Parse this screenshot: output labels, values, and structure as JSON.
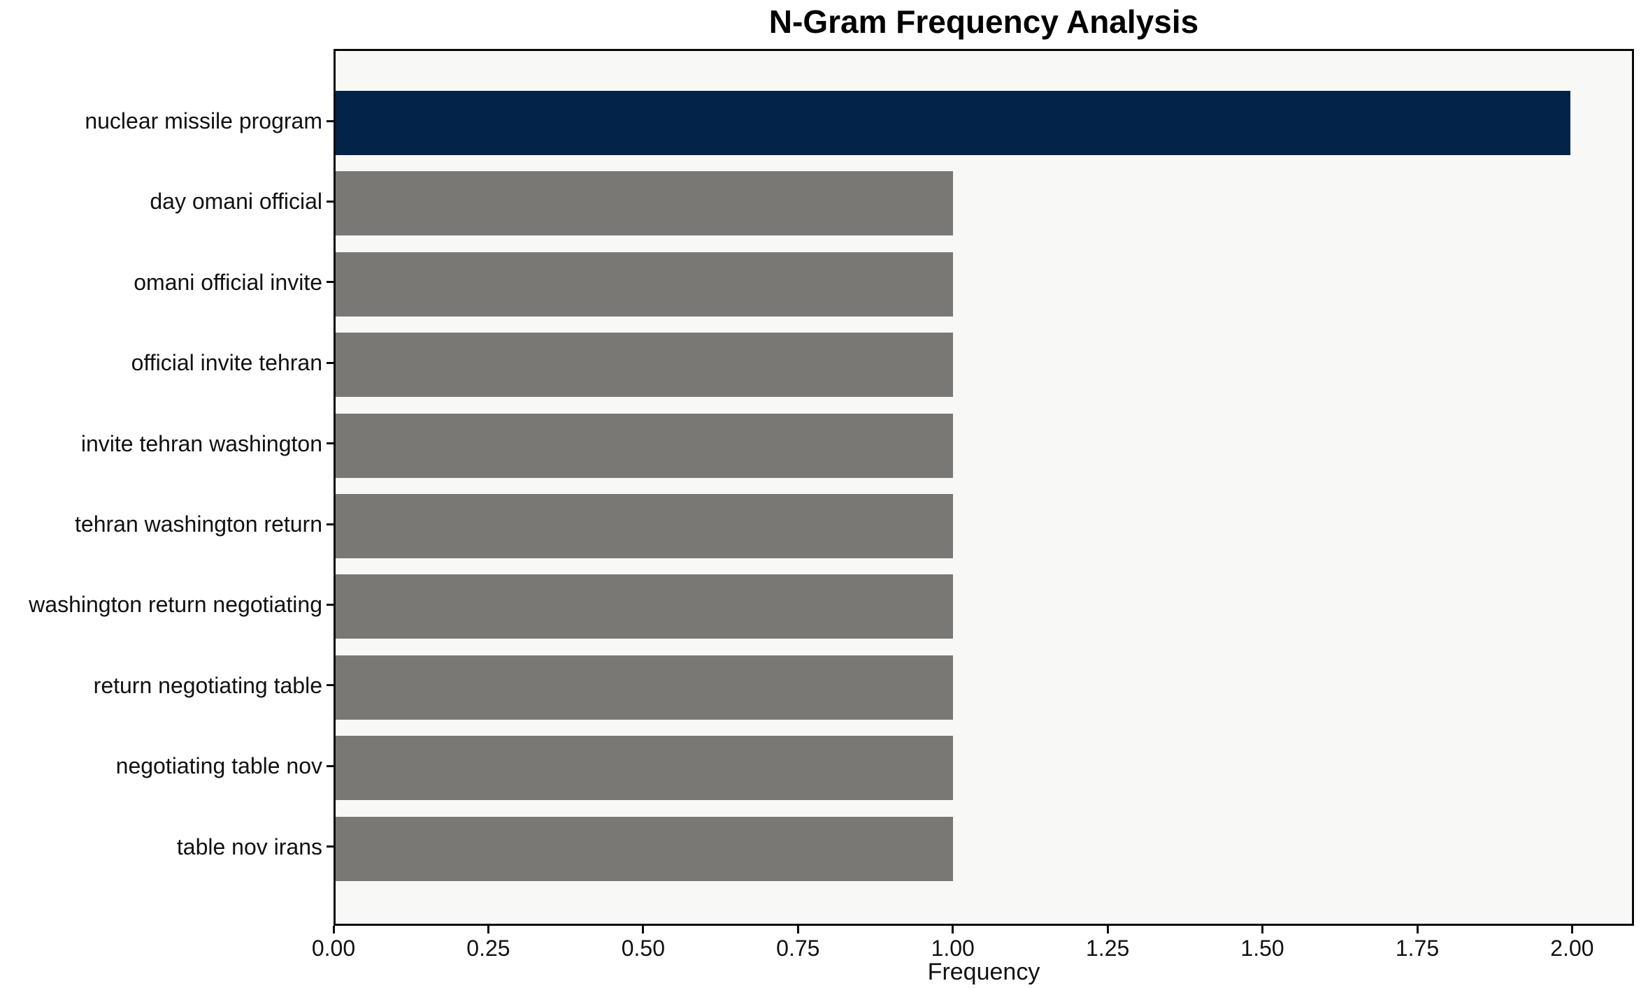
{
  "chart_data": {
    "type": "bar",
    "orientation": "horizontal",
    "title": "N-Gram Frequency Analysis",
    "xlabel": "Frequency",
    "ylabel": "",
    "categories": [
      "nuclear missile program",
      "day omani official",
      "omani official invite",
      "official invite tehran",
      "invite tehran washington",
      "tehran washington return",
      "washington return negotiating",
      "return negotiating table",
      "negotiating table nov",
      "table nov irans"
    ],
    "values": [
      2,
      1,
      1,
      1,
      1,
      1,
      1,
      1,
      1,
      1
    ],
    "bar_colors": [
      "#042348",
      "#7a7875",
      "#7a7875",
      "#7a7875",
      "#7a7875",
      "#7a7875",
      "#7a7875",
      "#7a7875",
      "#7a7875",
      "#7a7875"
    ],
    "xlim": [
      0,
      2.1
    ],
    "xticks": [
      0.0,
      0.25,
      0.5,
      0.75,
      1.0,
      1.25,
      1.5,
      1.75,
      2.0
    ],
    "xtick_labels": [
      "0.00",
      "0.25",
      "0.50",
      "0.75",
      "1.00",
      "1.25",
      "1.50",
      "1.75",
      "2.00"
    ],
    "grid": "off",
    "legend": "none",
    "plot_background": "#f8f8f7",
    "figure_background": "#ffffff",
    "highlight_color": "#042348",
    "default_bar_color": "#7a7875"
  }
}
